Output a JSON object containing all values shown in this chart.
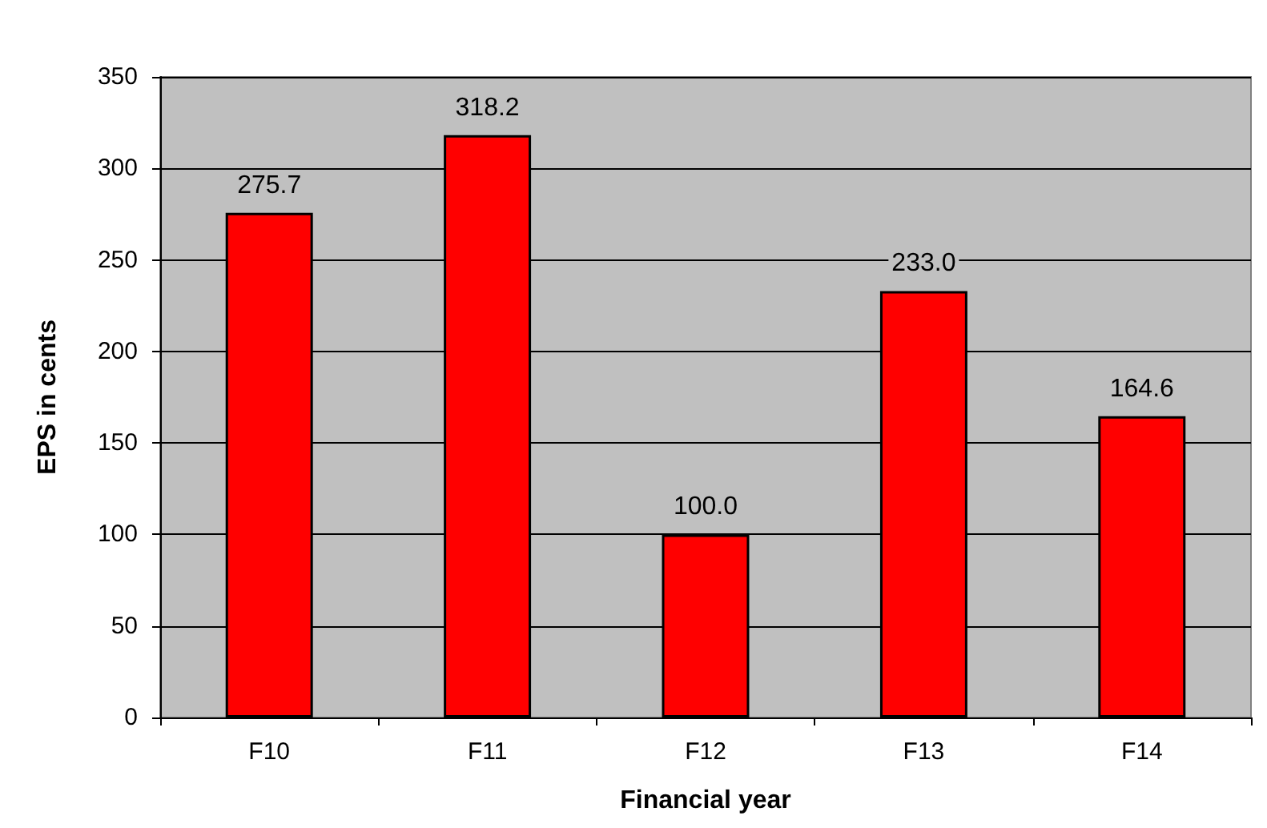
{
  "chart_data": {
    "type": "bar",
    "xlabel": "Financial year",
    "ylabel": "EPS in cents",
    "categories": [
      "F10",
      "F11",
      "F12",
      "F13",
      "F14"
    ],
    "values": [
      275.7,
      318.2,
      100.0,
      233.0,
      164.6
    ],
    "value_labels": [
      "275.7",
      "318.2",
      "100.0",
      "233.0",
      "164.6"
    ],
    "color": "#ff0000",
    "ylim": [
      0,
      350
    ],
    "yticks": [
      0,
      50,
      100,
      150,
      200,
      250,
      300,
      350
    ],
    "grid": "y"
  }
}
